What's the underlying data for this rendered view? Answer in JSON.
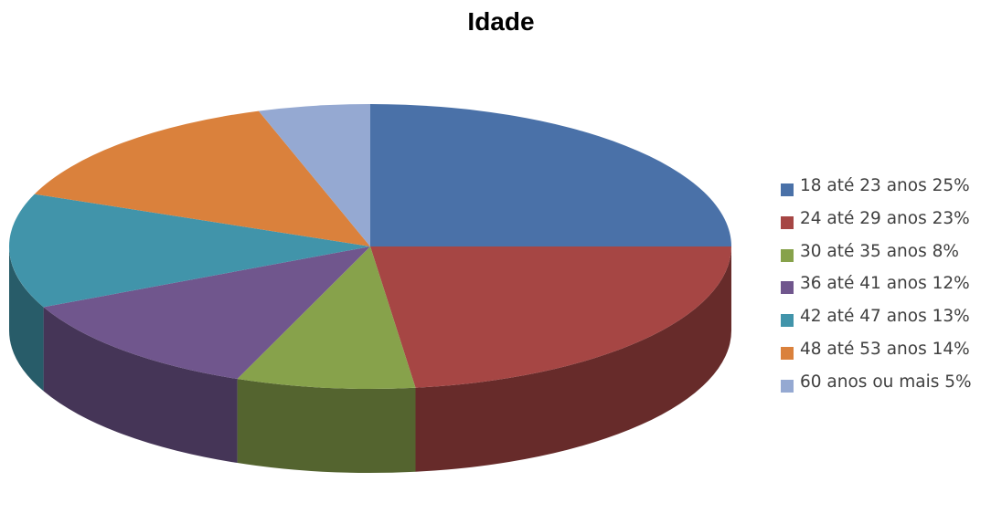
{
  "chart_data": {
    "type": "pie",
    "title": "Idade",
    "three_d": true,
    "start_angle_deg": 90,
    "direction": "clockwise",
    "legend_position": "right",
    "slices": [
      {
        "label": "18 até 23 anos 25%",
        "category": "18 até 23 anos",
        "value": 25,
        "color": "#4A71A8"
      },
      {
        "label": "24 até 29 anos 23%",
        "category": "24 até 29 anos",
        "value": 23,
        "color": "#A64644"
      },
      {
        "label": "30 até 35 anos 8%",
        "category": "30 até 35 anos",
        "value": 8,
        "color": "#87A24B"
      },
      {
        "label": "36 até 41 anos 12%",
        "category": "36 até 41 anos",
        "value": 12,
        "color": "#70568D"
      },
      {
        "label": "42 até 47 anos 13%",
        "category": "42 até 47 anos",
        "value": 13,
        "color": "#4194AA"
      },
      {
        "label": "48 até 53 anos 14%",
        "category": "48 até 53 anos",
        "value": 14,
        "color": "#DA813C"
      },
      {
        "label": "60 anos ou mais 5%",
        "category": "60 anos ou mais",
        "value": 5,
        "color": "#95A9D2"
      }
    ]
  }
}
